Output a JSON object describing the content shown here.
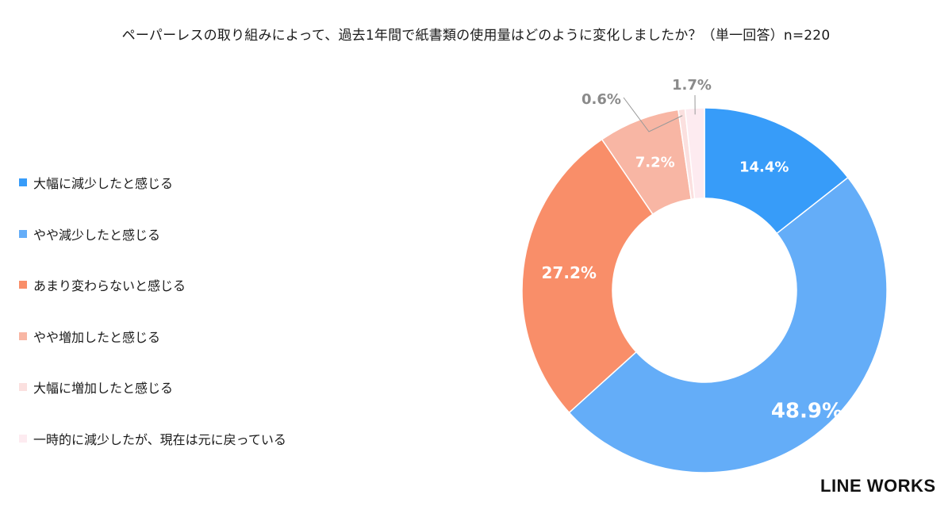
{
  "chart_data": {
    "type": "pie",
    "title": "ペーパーレスの取り組みによって、過去1年間で紙書類の使用量はどのように変化しましたか？（単一回答）n=220",
    "categories": [
      "大幅に減少したと感じる",
      "やや減少したと感じる",
      "あまり変わらないと感じる",
      "やや増加したと感じる",
      "大幅に増加したと感じる",
      "一時的に減少したが、現在は元に戻っている"
    ],
    "values": [
      14.4,
      48.9,
      27.2,
      7.2,
      0.6,
      1.7
    ],
    "labels": [
      "14.4%",
      "48.9%",
      "27.2%",
      "7.2%",
      "0.6%",
      "1.7%"
    ],
    "colors": [
      "#379cf9",
      "#64adf8",
      "#f98e69",
      "#f8b6a4",
      "#fbe0df",
      "#fdebf0"
    ],
    "legend_position": "left",
    "style": "donut"
  },
  "brand": {
    "logo_text": "LINE WORKS"
  }
}
